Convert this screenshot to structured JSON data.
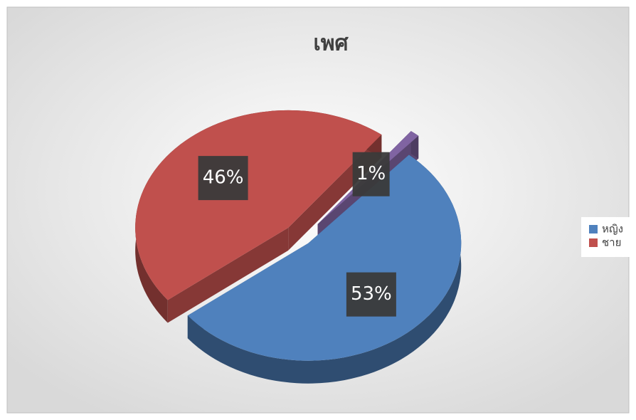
{
  "chart_data": {
    "type": "pie",
    "title": "เพศ",
    "categories": [
      "หญิง",
      "ชาย",
      null
    ],
    "values": [
      53,
      46,
      1
    ],
    "value_labels": [
      "53%",
      "46%",
      "1%"
    ],
    "colors": [
      "#4f81bd",
      "#c0504d",
      "#8064a2"
    ],
    "legend": "right"
  }
}
